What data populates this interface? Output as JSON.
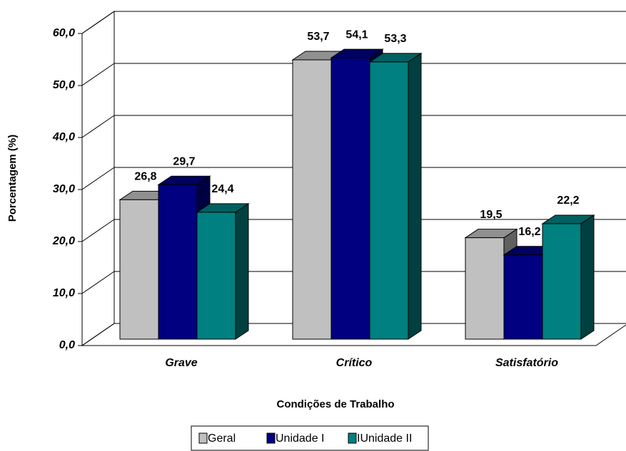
{
  "chart_data": {
    "type": "bar3d",
    "y_label": "Porcentagem (%)",
    "x_label": "Condições de Trabalho",
    "categories": [
      "Grave",
      "Crítico",
      "Satisfatório"
    ],
    "series": [
      {
        "name": "Geral",
        "color": "#c0c0c0",
        "values": [
          26.8,
          53.7,
          19.5
        ],
        "value_labels": [
          "26,8",
          "53,7",
          "19,5"
        ]
      },
      {
        "name": "Unidade I",
        "color": "#000080",
        "values": [
          29.7,
          54.1,
          16.2
        ],
        "value_labels": [
          "29,7",
          "54,1",
          "16,2"
        ]
      },
      {
        "name": "IUnidade II",
        "color": "#008080",
        "values": [
          24.4,
          53.3,
          22.2
        ],
        "value_labels": [
          "24,4",
          "53,3",
          "22,2"
        ]
      }
    ],
    "ylim": [
      0,
      60
    ],
    "yticks": [
      {
        "value": 0,
        "label": "0,0"
      },
      {
        "value": 10,
        "label": "10,0"
      },
      {
        "value": 20,
        "label": "20,0"
      },
      {
        "value": 30,
        "label": "30,0"
      },
      {
        "value": 40,
        "label": "40,0"
      },
      {
        "value": 50,
        "label": "50,0"
      },
      {
        "value": 60,
        "label": "60,0"
      }
    ],
    "grid": true,
    "legend": "bottom"
  }
}
